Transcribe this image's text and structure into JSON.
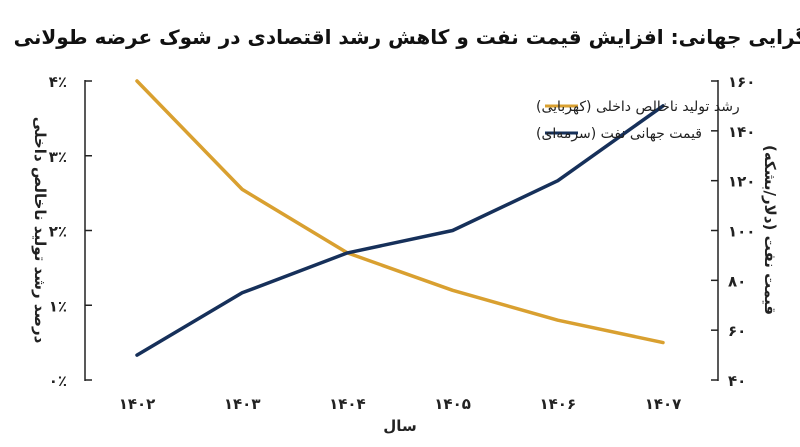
{
  "chart_data": {
    "type": "line",
    "title": "واگرایی جهانی: افزایش قیمت نفت و کاهش رشد اقتصادی در شوک عرضه طولانی",
    "xlabel": "سال",
    "ylabel_left": "درصد رشد تولید ناخالص داخلی",
    "ylabel_right": "قیمت نفت (دلار/بشکه)",
    "categories": [
      "۱۴۰۲",
      "۱۴۰۳",
      "۱۴۰۴",
      "۱۴۰۵",
      "۱۴۰۶",
      "۱۴۰۷"
    ],
    "left_axis": {
      "ylim": [
        0,
        4
      ],
      "ticks": [
        0,
        1,
        2,
        3,
        4
      ],
      "tick_labels": [
        "۰٪",
        "۱٪",
        "۲٪",
        "۳٪",
        "۴٪"
      ]
    },
    "right_axis": {
      "ylim": [
        40,
        160
      ],
      "ticks": [
        40,
        60,
        80,
        100,
        120,
        140,
        160
      ],
      "tick_labels": [
        "۴۰",
        "۶۰",
        "۸۰",
        "۱۰۰",
        "۱۲۰",
        "۱۴۰",
        "۱۶۰"
      ]
    },
    "series": [
      {
        "name": "رشد تولید ناخالص داخلی (کهربایی)",
        "axis": "left",
        "color": "#D9A030",
        "values": [
          4.0,
          2.55,
          1.7,
          1.2,
          0.8,
          0.5
        ]
      },
      {
        "name": "قیمت جهانی نفت (سرمه‌ای)",
        "axis": "right",
        "color": "#16305A",
        "values": [
          50,
          75,
          91,
          100,
          120,
          150
        ]
      }
    ],
    "legend_position": "top-center",
    "grid": false
  }
}
